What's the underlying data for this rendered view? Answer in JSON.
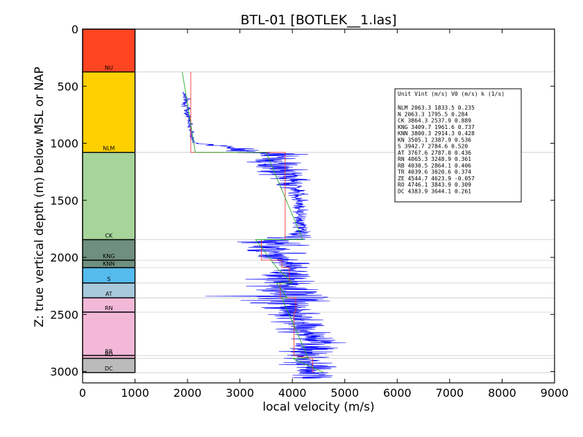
{
  "chart_data": {
    "type": "line",
    "title": "BTL-01 [BOTLEK__1.las]",
    "xlabel": "local velocity (m/s)",
    "ylabel": "Z: true vertical depth (m) below MSL or NAP",
    "xlim": [
      0,
      9000
    ],
    "ylim": [
      3100,
      0
    ],
    "xticks": [
      "0",
      "1000",
      "2000",
      "3000",
      "4000",
      "5000",
      "6000",
      "7000",
      "8000",
      "9000"
    ],
    "yticks": [
      "0",
      "500",
      "1000",
      "1500",
      "2000",
      "2500",
      "3000"
    ],
    "grid": "horizontal lines at unit boundaries",
    "units": [
      {
        "name": "NU",
        "top": 0,
        "base": 375,
        "color": "#ff4422"
      },
      {
        "name": "NLM",
        "top": 375,
        "base": 1080,
        "color": "#ffd000"
      },
      {
        "name": "CK",
        "top": 1080,
        "base": 1845,
        "color": "#a6d49a"
      },
      {
        "name": "KNG",
        "top": 1845,
        "base": 2025,
        "color": "#6f8f80"
      },
      {
        "name": "KNN",
        "top": 2025,
        "base": 2090,
        "color": "#6f8f80"
      },
      {
        "name": "S",
        "top": 2090,
        "base": 2225,
        "color": "#55bbee"
      },
      {
        "name": "AT",
        "top": 2225,
        "base": 2355,
        "color": "#a8c8dc"
      },
      {
        "name": "RN",
        "top": 2355,
        "base": 2480,
        "color": "#f3b8d8"
      },
      {
        "name": "RB",
        "top": 2480,
        "base": 2860,
        "color": "#f3b8d8"
      },
      {
        "name": "RO",
        "top": 2860,
        "base": 2885,
        "color": "#f3b8d8"
      },
      {
        "name": "DC",
        "top": 2885,
        "base": 3010,
        "color": "#bbbbbb"
      }
    ],
    "table": {
      "header": "Unit   Vint (m/s)    V0 (m/s)      k (1/s)",
      "rows": [
        "NLM    2063.3  1833.5  0.235",
        "N      2063.3  1795.5  0.284",
        "CK     3864.3  2537.9  0.889",
        "KNG    3409.7  1961.6  0.737",
        "KNN    3800.3  2914.3  0.428",
        "KN     3505.1  2387.9  0.536",
        "S      3942.7  2784.6  0.520",
        "AT     3767.6  2787.0  0.436",
        "RN     4065.3  3248.9  0.361",
        "RB     4030.5  2864.1  0.406",
        "TR     4039.6  3020.6  0.374",
        "ZE     4544.7  4623.9  -0.057",
        "RO     4746.1  3843.9  0.309",
        "DC     4383.9  3644.1  0.261"
      ]
    },
    "series": [
      {
        "name": "",
        "color": "#0000ff",
        "kind": "log velocity",
        "points": [
          [
            1.4,
            600,
            1900,
            2050
          ],
          [
            1.4,
            700,
            1880,
            2080
          ],
          [
            1.05,
            780,
            1970,
            2090
          ],
          [
            1.0,
            880,
            2010,
            2120
          ],
          [
            1.0,
            990,
            2060,
            2150
          ],
          [
            1.1,
            1100,
            3000,
            4400
          ],
          [
            1.1,
            1200,
            3100,
            4200
          ],
          [
            1.15,
            1300,
            3500,
            4400
          ],
          [
            1.2,
            1400,
            3800,
            4300
          ],
          [
            1.25,
            1500,
            4000,
            4300
          ],
          [
            1.35,
            1600,
            4000,
            4300
          ],
          [
            1.35,
            1700,
            4000,
            4300
          ],
          [
            1.35,
            1780,
            4000,
            4400
          ],
          [
            1.95,
            1860,
            2900,
            4400
          ],
          [
            2.0,
            1960,
            3000,
            4400
          ],
          [
            2.05,
            2060,
            3600,
            4400
          ],
          [
            2.1,
            2140,
            3400,
            4400
          ],
          [
            2.3,
            2250,
            3000,
            4600
          ],
          [
            2.4,
            2340,
            2600,
            5400
          ],
          [
            2.55,
            2420,
            3200,
            4600
          ],
          [
            2.6,
            2530,
            3600,
            4600
          ],
          [
            2.65,
            2630,
            3700,
            4800
          ],
          [
            2.8,
            2730,
            3800,
            4900
          ],
          [
            2.85,
            2820,
            3700,
            5000
          ],
          [
            2.95,
            2900,
            3800,
            4800
          ],
          [
            3.0,
            2980,
            3900,
            4800
          ]
        ]
      },
      {
        "name": "",
        "color": "#ee3333",
        "kind": "interval velocity",
        "points": [
          [
            2063,
            375
          ],
          [
            2063,
            1080
          ],
          [
            3864,
            1080
          ],
          [
            3864,
            1845
          ],
          [
            3410,
            1845
          ],
          [
            3410,
            2025
          ],
          [
            3800,
            2025
          ],
          [
            3800,
            2090
          ],
          [
            3943,
            2090
          ],
          [
            3943,
            2225
          ],
          [
            3768,
            2225
          ],
          [
            3768,
            2355
          ],
          [
            4065,
            2355
          ],
          [
            4065,
            2480
          ],
          [
            4031,
            2480
          ],
          [
            4031,
            2860
          ],
          [
            4384,
            2885
          ],
          [
            4384,
            3010
          ]
        ]
      },
      {
        "name": "",
        "color": "#22aa22",
        "kind": "linear trend",
        "points": [
          [
            1900,
            375
          ],
          [
            2150,
            1080
          ],
          [
            3500,
            1080
          ],
          [
            4200,
            1845
          ],
          [
            3300,
            1845
          ],
          [
            3600,
            2025
          ],
          [
            3700,
            2090
          ],
          [
            4000,
            2225
          ],
          [
            3700,
            2225
          ],
          [
            3900,
            2355
          ],
          [
            3800,
            2355
          ],
          [
            4300,
            2880
          ],
          [
            4000,
            2885
          ],
          [
            4600,
            3010
          ]
        ]
      }
    ]
  }
}
